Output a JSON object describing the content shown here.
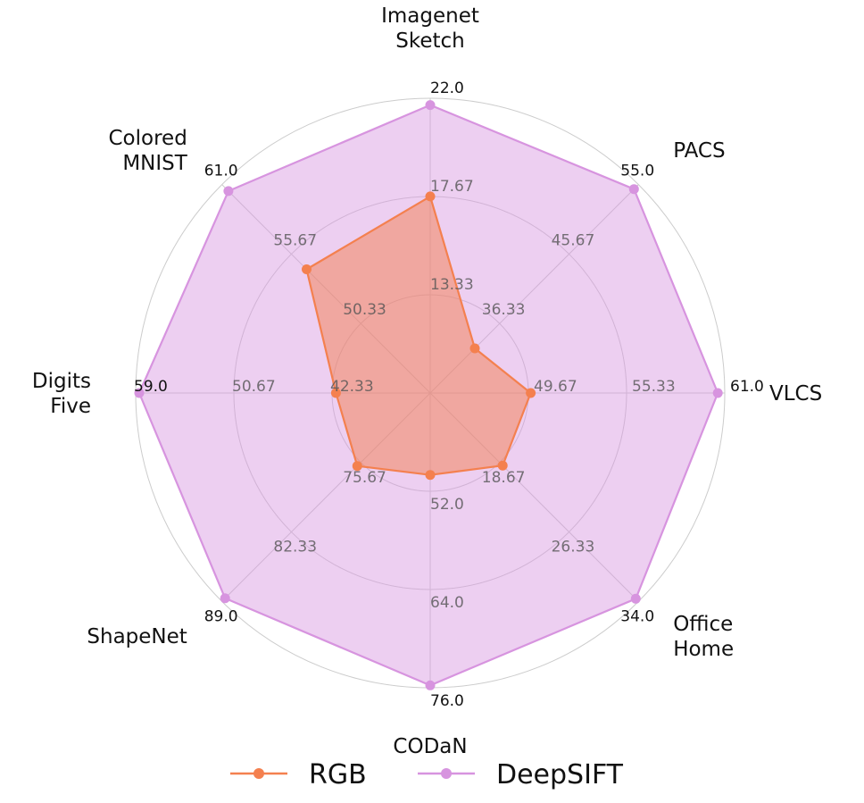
{
  "chart_data": {
    "type": "radar",
    "axes": [
      {
        "label": [
          "Imagenet",
          "Sketch"
        ],
        "ticks": [
          "13.33",
          "17.67",
          "22.0"
        ],
        "min": 9.0,
        "max": 22.0
      },
      {
        "label": [
          "PACS"
        ],
        "ticks": [
          "36.33",
          "45.67",
          "55.0"
        ],
        "min": 27.0,
        "max": 55.0
      },
      {
        "label": [
          "VLCS"
        ],
        "ticks": [
          "49.67",
          "55.33",
          "61.0"
        ],
        "min": 44.0,
        "max": 61.0
      },
      {
        "label": [
          "Office",
          "Home"
        ],
        "ticks": [
          "18.67",
          "26.33",
          "34.0"
        ],
        "min": 11.0,
        "max": 34.0
      },
      {
        "label": [
          "CODaN"
        ],
        "ticks": [
          "52.0",
          "64.0",
          "76.0"
        ],
        "min": 40.0,
        "max": 76.0
      },
      {
        "label": [
          "ShapeNet"
        ],
        "ticks": [
          "75.67",
          "82.33",
          "89.0"
        ],
        "min": 69.0,
        "max": 89.0
      },
      {
        "label": [
          "Digits",
          "Five"
        ],
        "ticks": [
          "42.33",
          "50.67",
          "59.0"
        ],
        "min": 34.0,
        "max": 59.0
      },
      {
        "label": [
          "Colored",
          "MNIST"
        ],
        "ticks": [
          "50.33",
          "55.67",
          "61.0"
        ],
        "min": 45.0,
        "max": 61.0
      }
    ],
    "series": [
      {
        "name": "RGB",
        "color": "#f4804f",
        "fill": "#f4804f",
        "values": [
          17.67,
          33.0,
          49.8,
          19.0,
          50.0,
          76.0,
          42.0,
          54.5
        ]
      },
      {
        "name": "DeepSIFT",
        "color": "#d794df",
        "fill": "#d794df",
        "values": [
          21.7,
          54.4,
          60.6,
          33.7,
          75.7,
          88.7,
          58.7,
          60.5
        ]
      }
    ],
    "grid": true,
    "legend_position": "bottom"
  }
}
